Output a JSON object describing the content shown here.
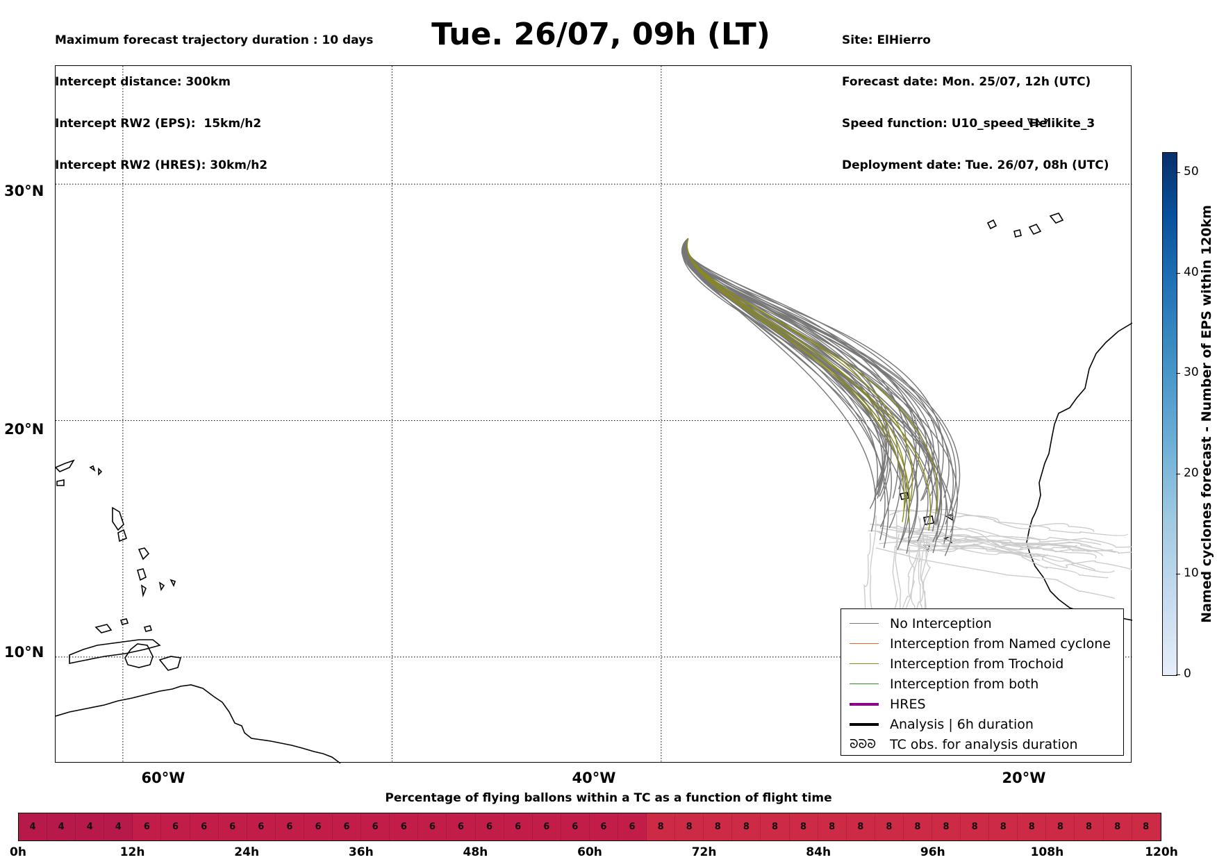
{
  "header": {
    "left_lines": [
      "Maximum forecast trajectory duration : 10 days",
      "Intercept distance: 300km",
      "Intercept RW2 (EPS):  15km/h2",
      "Intercept RW2 (HRES): 30km/h2"
    ],
    "title": "Tue. 26/07, 09h (LT)",
    "right_lines": [
      "Site: ElHierro",
      "Forecast date: Mon. 25/07, 12h (UTC)",
      "Speed function: U10_speed_Helikite_3",
      "Deployment date: Tue. 26/07, 08h (UTC)"
    ]
  },
  "chart_data": [
    {
      "type": "map",
      "lon_range": [
        -65,
        15
      ],
      "lat_range": [
        5.5,
        35.0
      ],
      "lat_ticks": [
        {
          "value": 30,
          "label": "30°N"
        },
        {
          "value": 20,
          "label": "20°N"
        },
        {
          "value": 10,
          "label": "10°N"
        }
      ],
      "lon_ticks": [
        {
          "value": -60,
          "label": "60°W"
        },
        {
          "value": -40,
          "label": "40°W"
        },
        {
          "value": -20,
          "label": "20°W"
        }
      ],
      "grid": "dotted",
      "launch_site": {
        "name": "ElHierro",
        "lon": -18.0,
        "lat": 27.7
      },
      "trajectories_no_interception_count": 45,
      "trajectories_trochoid_count": 6,
      "legend_position": "bottom-right",
      "legend": [
        {
          "label": "No Interception",
          "color": "#777777",
          "style": "thin"
        },
        {
          "label": "Interception from Named cyclone",
          "color": "#e8622a",
          "style": "thin"
        },
        {
          "label": "Interception from Trochoid",
          "color": "#8a8a1a",
          "style": "thin"
        },
        {
          "label": "Interception from both",
          "color": "#2e8b2e",
          "style": "thin"
        },
        {
          "label": "HRES",
          "color": "#8b008b",
          "style": "thick"
        },
        {
          "label": "Analysis | 6h duration",
          "color": "#000000",
          "style": "thick"
        },
        {
          "label": "TC obs. for analysis duration",
          "color": "#000000",
          "style": "symbol"
        }
      ]
    },
    {
      "type": "colorbar",
      "label": "Named cyclones forecast - Number of EPS within 120km",
      "range": [
        0,
        52
      ],
      "ticks": [
        0,
        10,
        20,
        30,
        40,
        50
      ],
      "colormap": "Blues"
    },
    {
      "type": "heatmap",
      "title": "Percentage of flying ballons within a TC as a function of flight time",
      "time_labels": [
        "0h",
        "12h",
        "24h",
        "36h",
        "48h",
        "60h",
        "72h",
        "84h",
        "96h",
        "108h",
        "120h"
      ],
      "values": [
        4,
        4,
        4,
        4,
        6,
        6,
        6,
        6,
        6,
        6,
        6,
        6,
        6,
        6,
        6,
        6,
        6,
        6,
        6,
        6,
        6,
        6,
        8,
        8,
        8,
        8,
        8,
        8,
        8,
        8,
        8,
        8,
        8,
        8,
        8,
        8,
        8,
        8,
        8,
        8
      ],
      "colors": {
        "4": "#b7194a",
        "6": "#c21d48",
        "8": "#cd2a46"
      }
    }
  ]
}
